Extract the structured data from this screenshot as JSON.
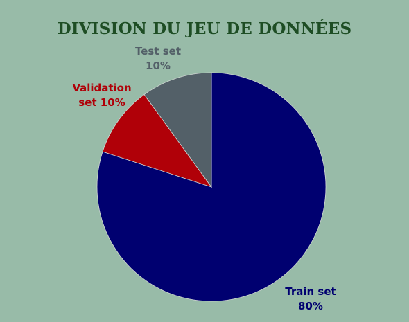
{
  "chart_data": {
    "type": "pie",
    "title": "DIVISION DU JEU DE DONNÉES",
    "slices": [
      {
        "name": "Train set",
        "value": 80,
        "color": "#000070",
        "label_lines": [
          "Train set",
          "80%"
        ]
      },
      {
        "name": "Validation set",
        "value": 10,
        "color": "#b00008",
        "label_lines": [
          "Validation",
          "set 10%"
        ]
      },
      {
        "name": "Test set",
        "value": 10,
        "color": "#536068",
        "label_lines": [
          "Test set",
          "10%"
        ]
      }
    ],
    "start_angle_deg": 0,
    "direction": "clockwise",
    "legend": "none"
  },
  "colors": {
    "background": "#98bba8",
    "title": "#1e4d24"
  }
}
